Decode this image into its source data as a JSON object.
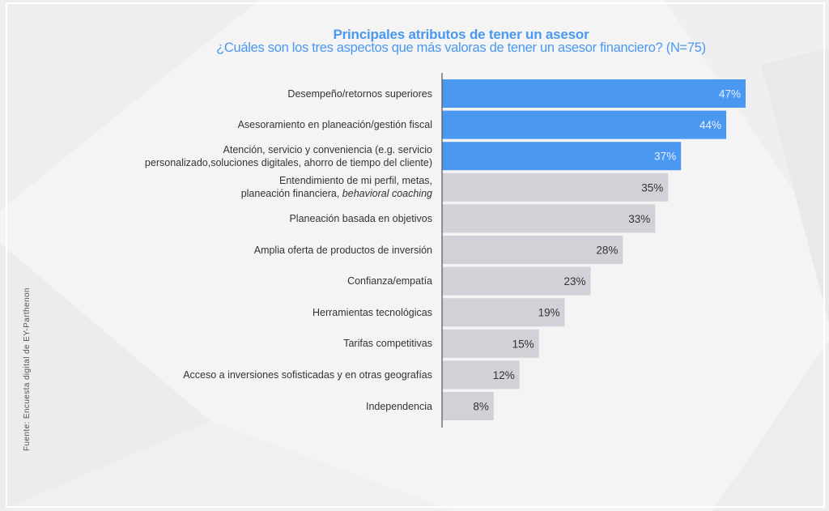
{
  "chart_data": {
    "type": "bar",
    "orientation": "horizontal",
    "title": "Principales atributos de tener un asesor",
    "subtitle": "¿Cuáles son los tres aspectos que más valoras de tener un asesor financiero? (N=75)",
    "xlabel": "",
    "ylabel": "",
    "xlim": [
      0,
      50
    ],
    "grid": false,
    "legend": "none",
    "unit": "%",
    "categories": [
      "Desempeño/retornos superiores",
      "Asesoramiento en planeación/gestión fiscal",
      "Atención, servicio y conveniencia (e.g. servicio personalizado,soluciones digitales, ahorro de tiempo del cliente)",
      "Entendimiento de mi perfil, metas, planeación financiera, behavioral coaching",
      "Planeación basada en objetivos",
      "Amplia oferta de productos de inversión",
      "Confianza/empatía",
      "Herramientas tecnológicas",
      "Tarifas competitivas",
      "Acceso a inversiones sofisticadas y en otras geografías",
      "Independencia"
    ],
    "label_lines": [
      [
        "Desempeño/retornos superiores"
      ],
      [
        "Asesoramiento en planeación/gestión fiscal"
      ],
      [
        "Atención, servicio y conveniencia (e.g. servicio",
        "personalizado,soluciones digitales, ahorro de tiempo del cliente)"
      ],
      [
        "Entendimiento de mi perfil, metas,",
        "planeación financiera, |behavioral coaching"
      ],
      [
        "Planeación basada en objetivos"
      ],
      [
        "Amplia oferta de productos de inversión"
      ],
      [
        "Confianza/empatía"
      ],
      [
        "Herramientas tecnológicas"
      ],
      [
        "Tarifas competitivas"
      ],
      [
        "Acceso a inversiones sofisticadas y en otras geografías"
      ],
      [
        "Independencia"
      ]
    ],
    "values": [
      47,
      44,
      37,
      35,
      33,
      28,
      23,
      19,
      15,
      12,
      8
    ],
    "data_labels": [
      "47%",
      "44%",
      "37%",
      "35%",
      "33%",
      "28%",
      "23%",
      "19%",
      "15%",
      "12%",
      "8%"
    ],
    "highlighted": [
      true,
      true,
      true,
      false,
      false,
      false,
      false,
      false,
      false,
      false,
      false
    ],
    "colors": {
      "highlight": "#4a98f0",
      "default": "#d2d1d7",
      "highlight_label": "#e8f1fd",
      "default_label": "#333333",
      "axis": "#555555",
      "title": "#4a98f0"
    },
    "source": "Fuente: Encuesta digital de EY-Parthenon"
  }
}
